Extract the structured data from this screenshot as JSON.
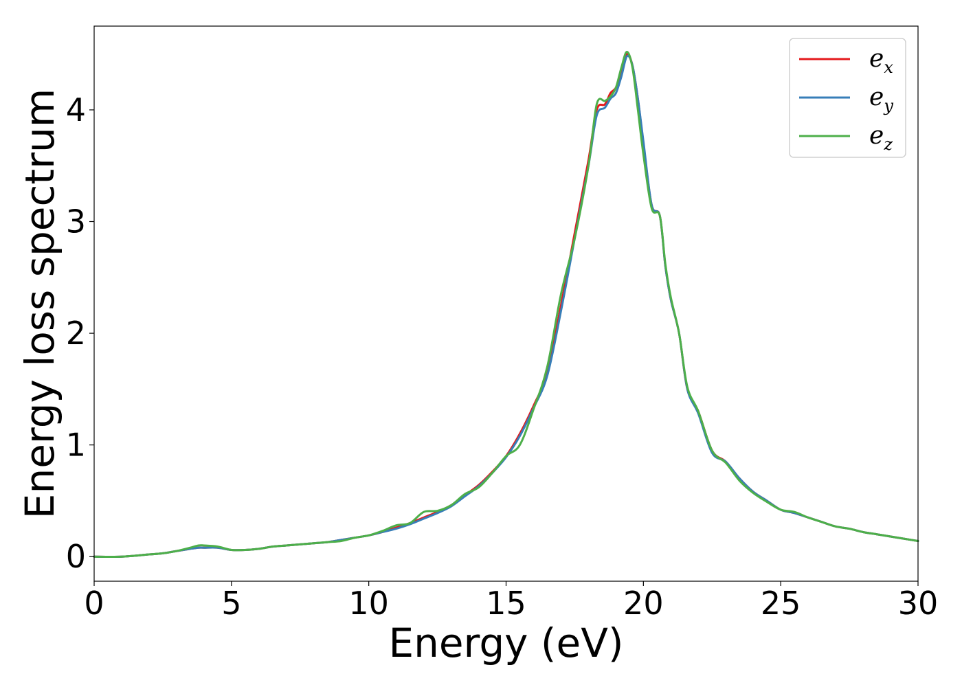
{
  "chart_data": {
    "type": "line",
    "title": "",
    "xlabel": "Energy (eV)",
    "ylabel": "Energy loss spectrum",
    "xlim": [
      0,
      30
    ],
    "ylim": [
      -0.22,
      4.75
    ],
    "xticks": [
      0,
      5,
      10,
      15,
      20,
      25,
      30
    ],
    "yticks": [
      0,
      1,
      2,
      3,
      4
    ],
    "grid": false,
    "legend_position": "top-right",
    "series": [
      {
        "name": "e_x",
        "label_base": "e",
        "label_sub": "x",
        "color": "#e41a1c",
        "x": [
          0,
          1,
          2,
          2.5,
          3,
          3.5,
          3.8,
          4,
          4.5,
          5,
          5.5,
          6,
          6.5,
          7,
          7.5,
          8,
          8.5,
          9,
          9.5,
          10,
          10.5,
          11,
          11.5,
          12,
          12.5,
          13,
          13.5,
          14,
          14.5,
          15,
          15.5,
          16,
          16.5,
          17,
          17.5,
          18,
          18.3,
          18.6,
          18.8,
          19,
          19.2,
          19.4,
          19.6,
          19.8,
          20,
          20.3,
          20.6,
          20.8,
          21,
          21.3,
          21.6,
          22,
          22.5,
          23,
          23.5,
          24,
          24.5,
          25,
          25.5,
          26,
          26.5,
          27,
          27.5,
          28,
          28.5,
          29,
          29.5,
          30
        ],
        "y": [
          0,
          0,
          0.02,
          0.03,
          0.05,
          0.07,
          0.08,
          0.08,
          0.08,
          0.06,
          0.06,
          0.07,
          0.09,
          0.1,
          0.11,
          0.12,
          0.13,
          0.15,
          0.17,
          0.19,
          0.22,
          0.26,
          0.3,
          0.35,
          0.4,
          0.46,
          0.55,
          0.64,
          0.76,
          0.9,
          1.1,
          1.35,
          1.65,
          2.25,
          2.9,
          3.55,
          4.0,
          4.05,
          4.15,
          4.2,
          4.35,
          4.5,
          4.4,
          4.1,
          3.7,
          3.15,
          3.05,
          2.6,
          2.3,
          2.0,
          1.5,
          1.3,
          0.95,
          0.85,
          0.7,
          0.58,
          0.5,
          0.42,
          0.39,
          0.35,
          0.31,
          0.27,
          0.25,
          0.22,
          0.2,
          0.18,
          0.16,
          0.14
        ]
      },
      {
        "name": "e_y",
        "label_base": "e",
        "label_sub": "y",
        "color": "#377eb8",
        "x": [
          0,
          1,
          2,
          2.5,
          3,
          3.5,
          3.8,
          4,
          4.5,
          5,
          5.5,
          6,
          6.5,
          7,
          7.5,
          8,
          8.5,
          9,
          9.5,
          10,
          10.5,
          11,
          11.5,
          12,
          12.5,
          13,
          13.5,
          14,
          14.5,
          15,
          15.5,
          16,
          16.5,
          17,
          17.5,
          18,
          18.3,
          18.6,
          18.8,
          19,
          19.2,
          19.4,
          19.6,
          19.8,
          20,
          20.3,
          20.6,
          20.8,
          21,
          21.3,
          21.6,
          22,
          22.5,
          23,
          23.5,
          24,
          24.5,
          25,
          25.5,
          26,
          26.5,
          27,
          27.5,
          28,
          28.5,
          29,
          29.5,
          30
        ],
        "y": [
          0,
          0,
          0.02,
          0.03,
          0.05,
          0.07,
          0.08,
          0.08,
          0.08,
          0.06,
          0.06,
          0.07,
          0.09,
          0.1,
          0.11,
          0.12,
          0.13,
          0.15,
          0.17,
          0.19,
          0.22,
          0.25,
          0.29,
          0.34,
          0.39,
          0.45,
          0.54,
          0.63,
          0.75,
          0.89,
          1.08,
          1.33,
          1.62,
          2.2,
          2.85,
          3.5,
          3.95,
          4.02,
          4.1,
          4.15,
          4.3,
          4.48,
          4.4,
          4.1,
          3.72,
          3.15,
          3.05,
          2.6,
          2.3,
          2.0,
          1.5,
          1.28,
          0.93,
          0.85,
          0.7,
          0.58,
          0.5,
          0.42,
          0.39,
          0.35,
          0.31,
          0.27,
          0.25,
          0.22,
          0.2,
          0.18,
          0.16,
          0.14
        ]
      },
      {
        "name": "e_z",
        "label_base": "e",
        "label_sub": "z",
        "color": "#4daf4a",
        "x": [
          0,
          1,
          2,
          2.5,
          3,
          3.5,
          3.8,
          4,
          4.5,
          5,
          5.5,
          6,
          6.5,
          7,
          7.5,
          8,
          8.5,
          9,
          9.5,
          10,
          10.5,
          11,
          11.5,
          12,
          12.5,
          13,
          13.5,
          14,
          14.5,
          15,
          15.5,
          16,
          16.5,
          17,
          17.5,
          18,
          18.3,
          18.6,
          18.8,
          19,
          19.2,
          19.4,
          19.6,
          19.8,
          20,
          20.3,
          20.6,
          20.8,
          21,
          21.3,
          21.6,
          22,
          22.5,
          23,
          23.5,
          24,
          24.5,
          25,
          25.5,
          26,
          26.5,
          27,
          27.5,
          28,
          28.5,
          29,
          29.5,
          30
        ],
        "y": [
          0,
          0,
          0.02,
          0.03,
          0.05,
          0.08,
          0.1,
          0.1,
          0.09,
          0.06,
          0.06,
          0.07,
          0.09,
          0.1,
          0.11,
          0.12,
          0.13,
          0.14,
          0.17,
          0.19,
          0.23,
          0.28,
          0.3,
          0.4,
          0.41,
          0.46,
          0.56,
          0.62,
          0.75,
          0.9,
          1.0,
          1.32,
          1.7,
          2.35,
          2.85,
          3.5,
          4.05,
          4.08,
          4.12,
          4.2,
          4.38,
          4.52,
          4.38,
          4.0,
          3.6,
          3.12,
          3.05,
          2.62,
          2.32,
          2.0,
          1.52,
          1.3,
          0.95,
          0.84,
          0.68,
          0.57,
          0.49,
          0.42,
          0.4,
          0.35,
          0.31,
          0.27,
          0.25,
          0.22,
          0.2,
          0.18,
          0.16,
          0.14
        ]
      }
    ]
  }
}
